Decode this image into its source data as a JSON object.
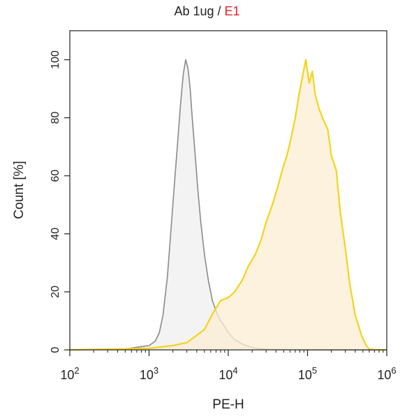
{
  "title": {
    "part1": "Ab 1ug / ",
    "part2": "E1"
  },
  "colors": {
    "control_line": "#8a8a8a",
    "control_fill": "#efefef",
    "sample_line": "#f2d41c",
    "sample_fill": "#fbedd2",
    "title_highlight": "#e8202a"
  },
  "chart_data": {
    "type": "area",
    "title": "Ab 1ug / E1",
    "xlabel": "PE-H",
    "ylabel": "Count [%]",
    "xscale": "log",
    "xlim": [
      100,
      1000000
    ],
    "ylim": [
      0,
      110
    ],
    "x_ticks": [
      {
        "value": 100,
        "base": "10",
        "exp": "2"
      },
      {
        "value": 1000,
        "base": "10",
        "exp": "3"
      },
      {
        "value": 10000,
        "base": "10",
        "exp": "4"
      },
      {
        "value": 100000,
        "base": "10",
        "exp": "5"
      },
      {
        "value": 1000000,
        "base": "10",
        "exp": "6"
      }
    ],
    "y_ticks": [
      0,
      20,
      40,
      60,
      80,
      100
    ],
    "grid": false,
    "series": [
      {
        "role": "control",
        "x": [
          100,
          500,
          1000,
          1200,
          1350,
          1500,
          1700,
          1900,
          2100,
          2300,
          2500,
          2700,
          2900,
          3100,
          3300,
          3500,
          3800,
          4100,
          4500,
          5000,
          5600,
          6300,
          7100,
          8000,
          9000,
          10000,
          11500,
          13000,
          15000,
          18000,
          22000,
          30000,
          100000,
          1000000
        ],
        "y": [
          0,
          0.3,
          1.5,
          3,
          6,
          12,
          25,
          42,
          58,
          72,
          85,
          95,
          100,
          97,
          90,
          80,
          68,
          56,
          44,
          33,
          24,
          17,
          13,
          10,
          8,
          6,
          4,
          3,
          2,
          1.2,
          0.6,
          0.2,
          0,
          0
        ]
      },
      {
        "role": "sample",
        "x": [
          100,
          1000,
          2000,
          3000,
          5000,
          6500,
          8000,
          10000,
          12000,
          15000,
          18000,
          22000,
          26000,
          30000,
          36000,
          42000,
          48000,
          55000,
          62000,
          70000,
          78000,
          86000,
          95000,
          105000,
          115000,
          125000,
          140000,
          160000,
          180000,
          200000,
          230000,
          260000,
          300000,
          340000,
          400000,
          480000,
          550000,
          600000,
          700000,
          1000000
        ],
        "y": [
          0,
          0.5,
          1.5,
          2.5,
          7,
          13,
          17,
          18,
          20,
          24,
          29,
          33,
          38,
          44,
          50,
          56,
          62,
          67,
          73,
          80,
          88,
          94,
          100,
          92,
          96,
          88,
          83,
          79,
          76,
          67,
          62,
          47,
          35,
          23,
          12,
          5,
          1.5,
          0.3,
          0,
          0
        ]
      }
    ]
  }
}
